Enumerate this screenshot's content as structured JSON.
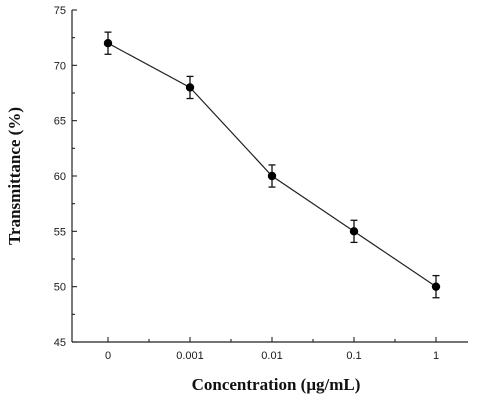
{
  "chart_data": {
    "type": "line",
    "categories": [
      "0",
      "0.001",
      "0.01",
      "0.1",
      "1"
    ],
    "series": [
      {
        "values": [
          72,
          68,
          60,
          55,
          50
        ],
        "errors": [
          1,
          1,
          1,
          1,
          1
        ]
      }
    ],
    "xlabel": "Concentration (μg/mL)",
    "ylabel": "Transmittance (%)",
    "ylim": [
      45,
      75
    ],
    "yticks": [
      "45",
      "50",
      "55",
      "60",
      "65",
      "70",
      "75"
    ],
    "grid": false,
    "marker": "filled-circle",
    "colors": {
      "line": "#222222",
      "marker": "#000000"
    }
  }
}
